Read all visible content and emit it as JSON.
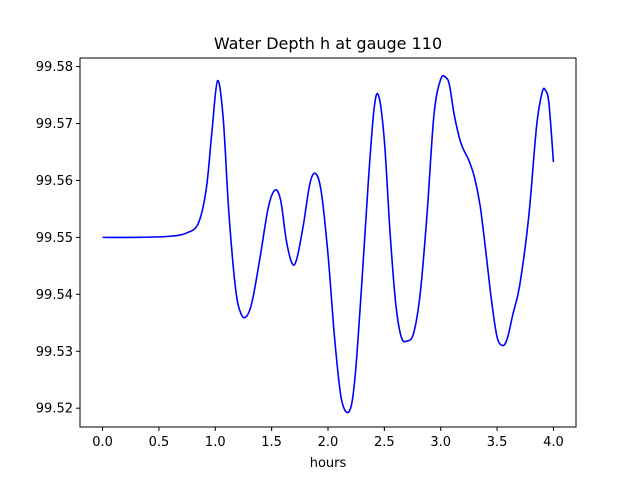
{
  "chart_data": {
    "type": "line",
    "title": "Water Depth h at gauge 110",
    "xlabel": "hours",
    "ylabel": "",
    "xlim": [
      -0.2,
      4.2
    ],
    "ylim": [
      99.5167,
      99.5815
    ],
    "xticks": [
      0.0,
      0.5,
      1.0,
      1.5,
      2.0,
      2.5,
      3.0,
      3.5,
      4.0
    ],
    "xtick_labels": [
      "0.0",
      "0.5",
      "1.0",
      "1.5",
      "2.0",
      "2.5",
      "3.0",
      "3.5",
      "4.0"
    ],
    "yticks": [
      99.52,
      99.53,
      99.54,
      99.55,
      99.56,
      99.57,
      99.58
    ],
    "ytick_labels": [
      "99.52",
      "99.53",
      "99.54",
      "99.55",
      "99.56",
      "99.57",
      "99.58"
    ],
    "grid": false,
    "series": [
      {
        "color": "#0000ff",
        "x": [
          0.0,
          0.3,
          0.6,
          0.75,
          0.85,
          0.92,
          0.97,
          1.02,
          1.07,
          1.12,
          1.18,
          1.23,
          1.28,
          1.33,
          1.4,
          1.47,
          1.53,
          1.58,
          1.63,
          1.68,
          1.72,
          1.78,
          1.84,
          1.89,
          1.94,
          2.0,
          2.06,
          2.12,
          2.19,
          2.24,
          2.3,
          2.36,
          2.41,
          2.45,
          2.5,
          2.55,
          2.6,
          2.65,
          2.7,
          2.76,
          2.82,
          2.88,
          2.94,
          3.0,
          3.05,
          3.08,
          3.12,
          3.18,
          3.25,
          3.3,
          3.35,
          3.4,
          3.45,
          3.5,
          3.55,
          3.59,
          3.64,
          3.7,
          3.78,
          3.85,
          3.9,
          3.93,
          3.96,
          4.0
        ],
        "y": [
          99.55,
          99.55,
          99.5502,
          99.5508,
          99.5525,
          99.5585,
          99.5685,
          99.5775,
          99.571,
          99.5545,
          99.541,
          99.5365,
          99.5362,
          99.539,
          99.5468,
          99.5552,
          99.5583,
          99.5565,
          99.5495,
          99.5455,
          99.546,
          99.552,
          99.5595,
          99.5612,
          99.558,
          99.547,
          99.532,
          99.5215,
          99.5195,
          99.5255,
          99.542,
          99.5605,
          99.5728,
          99.5748,
          99.567,
          99.551,
          99.5385,
          99.5325,
          99.5318,
          99.5332,
          99.5405,
          99.5545,
          99.5715,
          99.5778,
          99.578,
          99.5765,
          99.5715,
          99.5665,
          99.5635,
          99.5605,
          99.5555,
          99.5475,
          99.539,
          99.5325,
          99.531,
          99.5322,
          99.5365,
          99.5415,
          99.5535,
          99.5695,
          99.5755,
          99.5758,
          99.5735,
          99.5632
        ]
      }
    ]
  }
}
